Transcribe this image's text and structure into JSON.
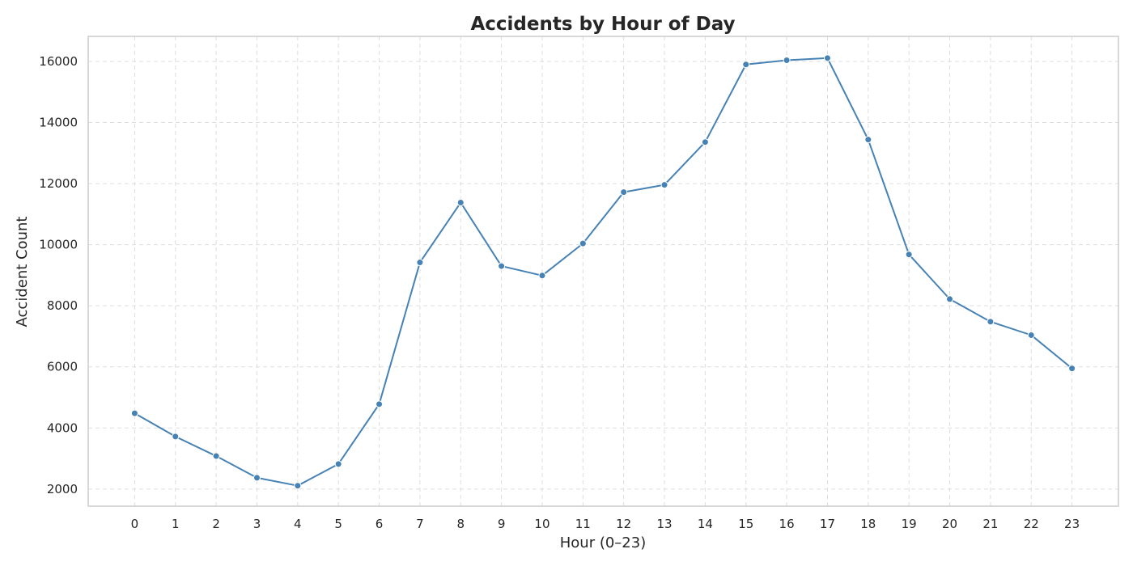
{
  "chart_data": {
    "type": "line",
    "title": "Accidents by Hour of Day",
    "xlabel": "Hour (0–23)",
    "ylabel": "Accident Count",
    "x": [
      0,
      1,
      2,
      3,
      4,
      5,
      6,
      7,
      8,
      9,
      10,
      11,
      12,
      13,
      14,
      15,
      16,
      17,
      18,
      19,
      20,
      21,
      22,
      23
    ],
    "series": [
      {
        "values": [
          4480,
          3720,
          3080,
          2370,
          2110,
          2820,
          4780,
          9420,
          11380,
          9300,
          8990,
          10040,
          11720,
          11960,
          13360,
          15900,
          16040,
          16110,
          13440,
          9680,
          8220,
          7480,
          7040,
          5950
        ],
        "color": "#4682b4",
        "marker": "circle"
      }
    ],
    "xticks": [
      "0",
      "1",
      "2",
      "3",
      "4",
      "5",
      "6",
      "7",
      "8",
      "9",
      "10",
      "11",
      "12",
      "13",
      "14",
      "15",
      "16",
      "17",
      "18",
      "19",
      "20",
      "21",
      "22",
      "23"
    ],
    "yticks": [
      2000,
      4000,
      6000,
      8000,
      10000,
      12000,
      14000,
      16000
    ],
    "ytick_labels": [
      "2000",
      "4000",
      "6000",
      "8000",
      "10000",
      "12000",
      "14000",
      "16000"
    ],
    "xlim": [
      -1.14,
      24.14
    ],
    "ylim": [
      1440,
      16820
    ],
    "grid": true,
    "grid_style": "dashed",
    "legend": "none"
  }
}
